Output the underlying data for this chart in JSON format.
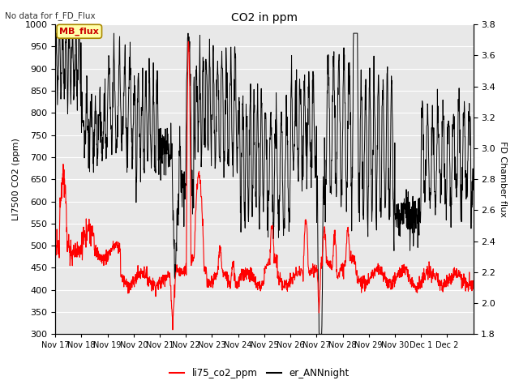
{
  "title": "CO2 in ppm",
  "top_left_text": "No data for f_FD_Flux",
  "ylabel_left": "LI7500 CO2 (ppm)",
  "ylabel_right": "FD Chamber flux",
  "ylim_left": [
    300,
    1000
  ],
  "ylim_right": [
    1.8,
    3.8
  ],
  "yticks_left": [
    300,
    350,
    400,
    450,
    500,
    550,
    600,
    650,
    700,
    750,
    800,
    850,
    900,
    950,
    1000
  ],
  "yticks_right": [
    1.8,
    2.0,
    2.2,
    2.4,
    2.6,
    2.8,
    3.0,
    3.2,
    3.4,
    3.6,
    3.8
  ],
  "x_tick_labels": [
    "Nov 17",
    "Nov 18",
    "Nov 19",
    "Nov 20",
    "Nov 21",
    "Nov 22",
    "Nov 23",
    "Nov 24",
    "Nov 25",
    "Nov 26",
    "Nov 27",
    "Nov 28",
    "Nov 29",
    "Nov 30",
    "Dec 1",
    "Dec 2"
  ],
  "legend_box_label": "MB_flux",
  "legend_box_color": "#ffffaa",
  "legend_box_border": "#aa8800",
  "legend_line1_label": "li75_co2_ppm",
  "legend_line1_color": "red",
  "legend_line2_label": "er_ANNnight",
  "legend_line2_color": "black",
  "plot_bg_color": "#e8e8e8",
  "grid_color": "white",
  "n_points": 1600
}
